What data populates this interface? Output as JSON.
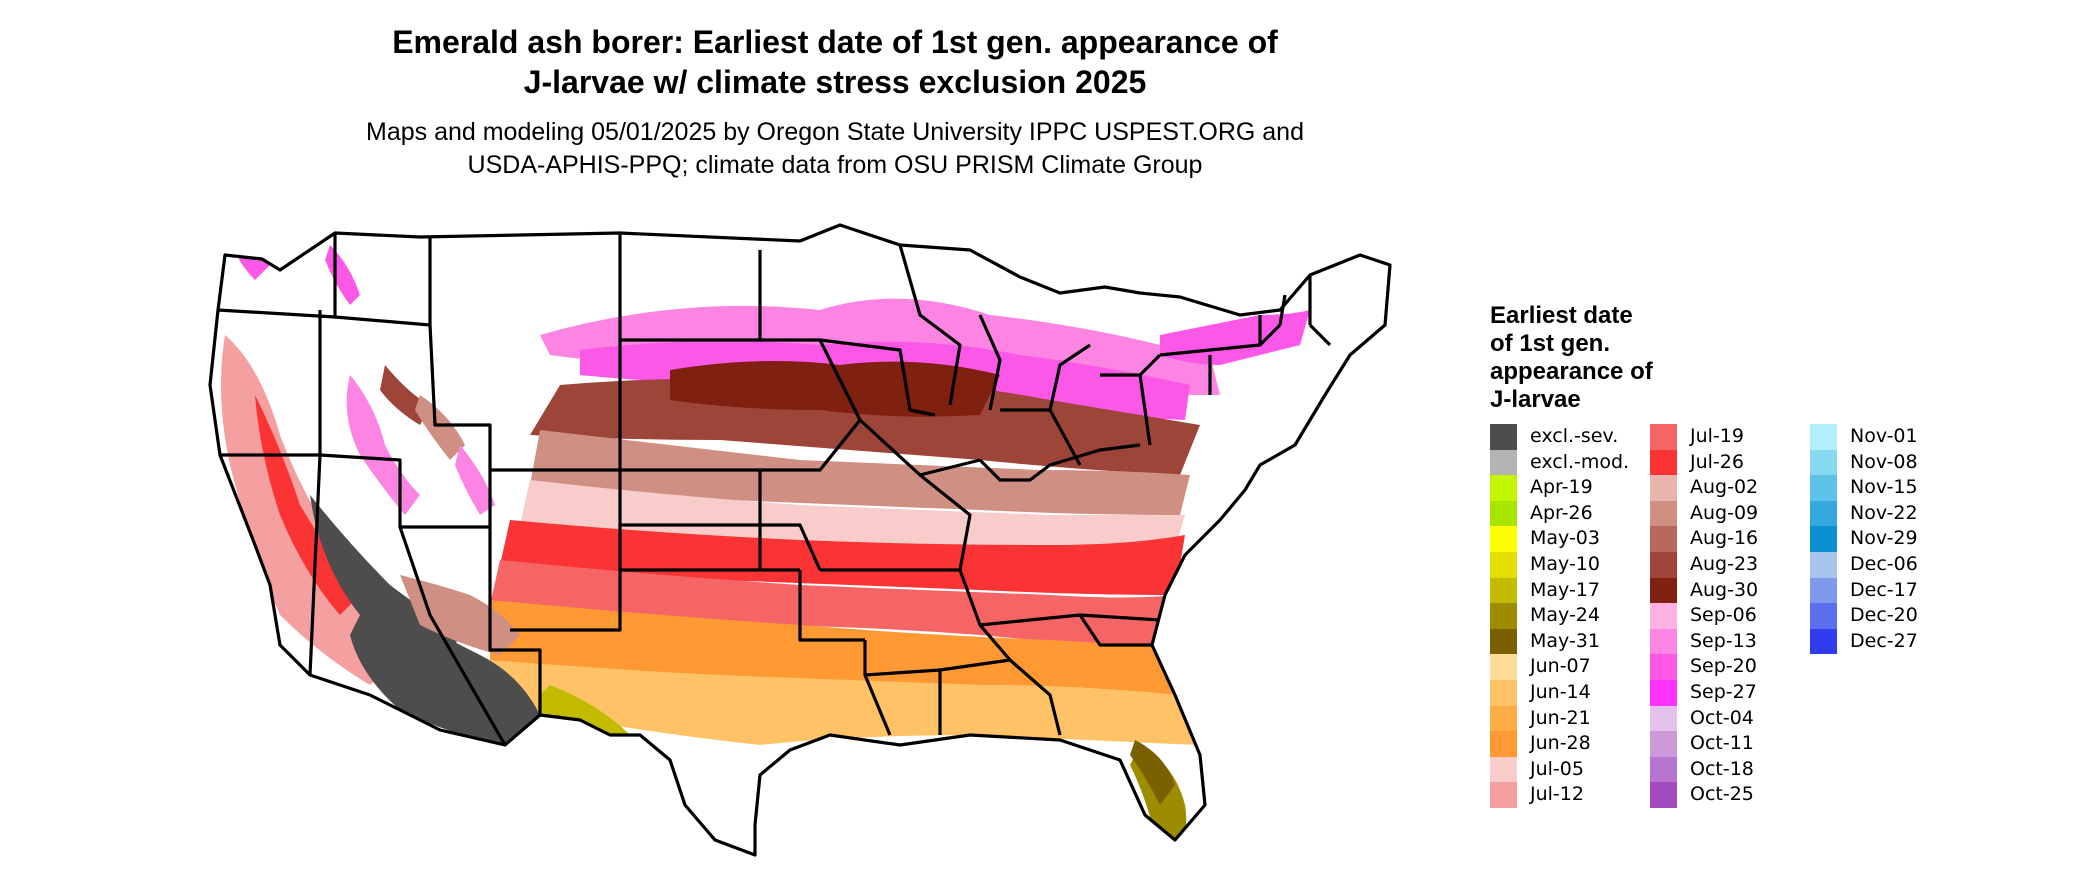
{
  "header": {
    "title_line1": "Emerald ash borer: Earliest date of 1st gen. appearance of",
    "title_line2": "J-larvae w/ climate stress exclusion 2025",
    "subtitle_line1": "Maps and modeling 05/01/2025 by Oregon State University IPPC USPEST.ORG and",
    "subtitle_line2": "USDA-APHIS-PPQ; climate data from OSU PRISM Climate Group"
  },
  "legend": {
    "title_lines": [
      "Earliest date",
      "of 1st gen.",
      "appearance of",
      "J-larvae"
    ],
    "columns": [
      [
        {
          "label": "excl.-sev.",
          "color": "#4d4d4d"
        },
        {
          "label": "excl.-mod.",
          "color": "#b3b3b3"
        },
        {
          "label": "Apr-19",
          "color": "#c2f500"
        },
        {
          "label": "Apr-26",
          "color": "#a8e600"
        },
        {
          "label": "May-03",
          "color": "#ffff00"
        },
        {
          "label": "May-10",
          "color": "#e2de00"
        },
        {
          "label": "May-17",
          "color": "#c2bb00"
        },
        {
          "label": "May-24",
          "color": "#9e8c00"
        },
        {
          "label": "May-31",
          "color": "#7a6000"
        },
        {
          "label": "Jun-07",
          "color": "#ffdb99"
        },
        {
          "label": "Jun-14",
          "color": "#ffc266"
        },
        {
          "label": "Jun-21",
          "color": "#ffad47"
        },
        {
          "label": "Jun-28",
          "color": "#ff9933"
        },
        {
          "label": "Jul-05",
          "color": "#f9cccc"
        },
        {
          "label": "Jul-12",
          "color": "#f4a0a0"
        }
      ],
      [
        {
          "label": "Jul-19",
          "color": "#f56565"
        },
        {
          "label": "Jul-26",
          "color": "#fa3434"
        },
        {
          "label": "Aug-02",
          "color": "#e8b4ab"
        },
        {
          "label": "Aug-09",
          "color": "#cf8f83"
        },
        {
          "label": "Aug-16",
          "color": "#b5695d"
        },
        {
          "label": "Aug-23",
          "color": "#9c4538"
        },
        {
          "label": "Aug-30",
          "color": "#7f2010"
        },
        {
          "label": "Sep-06",
          "color": "#fcb3e3"
        },
        {
          "label": "Sep-13",
          "color": "#fc85e3"
        },
        {
          "label": "Sep-20",
          "color": "#fc58e8"
        },
        {
          "label": "Sep-27",
          "color": "#ff33ff"
        },
        {
          "label": "Oct-04",
          "color": "#e2c2e8"
        },
        {
          "label": "Oct-11",
          "color": "#cc99d9"
        },
        {
          "label": "Oct-18",
          "color": "#b774cf"
        },
        {
          "label": "Oct-25",
          "color": "#a04cc0"
        }
      ],
      [
        {
          "label": "Nov-01",
          "color": "#b3f0ff"
        },
        {
          "label": "Nov-08",
          "color": "#88d8f2"
        },
        {
          "label": "Nov-15",
          "color": "#5fc2e8"
        },
        {
          "label": "Nov-22",
          "color": "#34a8dd"
        },
        {
          "label": "Nov-29",
          "color": "#0a8fd0"
        },
        {
          "label": "Dec-06",
          "color": "#a6c4ee"
        },
        {
          "label": "Dec-17",
          "color": "#7f99ec"
        },
        {
          "label": "Dec-20",
          "color": "#5a6fee"
        },
        {
          "label": "Dec-27",
          "color": "#2f3cf0"
        }
      ]
    ]
  }
}
